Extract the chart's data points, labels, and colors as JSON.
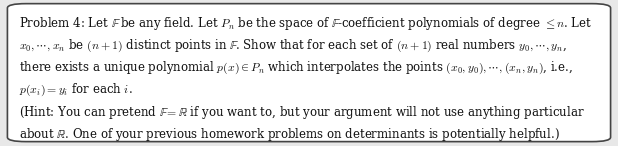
{
  "fig_background": "#e8e8e8",
  "box_background": "#ffffff",
  "border_color": "#444444",
  "border_linewidth": 1.2,
  "text_color": "#111111",
  "font_size": 8.5,
  "line1": "Problem 4: Let $\\mathbb{F}$ be any field. Let $P_n$ be the space of $\\mathbb{F}$-coefficient polynomials of degree $\\leq n$. Let",
  "line2": "$x_0, \\cdots, x_n$ be $(n+1)$ distinct points in $\\mathbb{F}$. Show that for each set of $(n+1)$ real numbers $y_0, \\cdots, y_n$,",
  "line3": "there exists a unique polynomial $p(x) \\in P_n$ which interpolates the points $(x_0, y_0), \\cdots, (x_n, y_n)$, i.e.,",
  "line4": "$p(x_i) = y_i$ for each $i$.",
  "line5": "(Hint: You can pretend $\\mathbb{F} = \\mathbb{R}$ if you want to, but your argument will not use anything particular",
  "line6": "about $\\mathbb{R}$. One of your previous homework problems on determinants is potentially helpful.)",
  "fig_width": 6.18,
  "fig_height": 1.46,
  "dpi": 100
}
